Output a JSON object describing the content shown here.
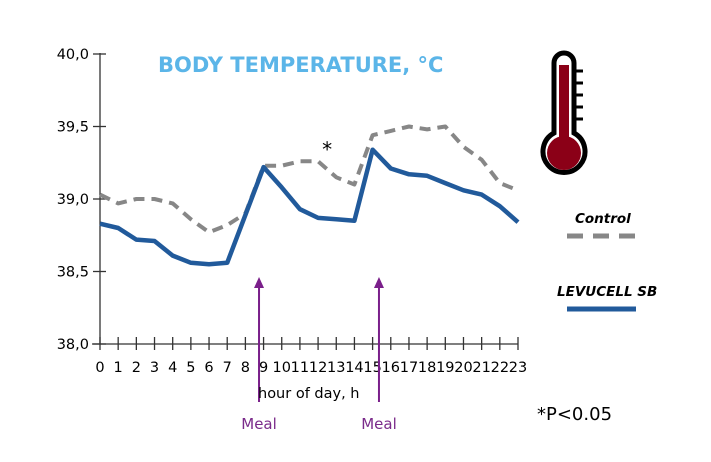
{
  "chart_data": {
    "type": "line",
    "title": "BODY TEMPERATURE, °C",
    "xlabel": "hour of day, h",
    "ylabel": "",
    "ylim": [
      38.0,
      40.0
    ],
    "yticks": [
      38.0,
      38.5,
      39.0,
      39.5,
      40.0
    ],
    "ytick_labels": [
      "38,0",
      "38,5",
      "39,0",
      "39,5",
      "40,0"
    ],
    "x": [
      0,
      1,
      2,
      3,
      4,
      5,
      6,
      7,
      8,
      9,
      10,
      11,
      12,
      13,
      14,
      15,
      16,
      17,
      18,
      19,
      20,
      21,
      22,
      23
    ],
    "xtick_labels": [
      "0",
      "1",
      "2",
      "3",
      "4",
      "5",
      "6",
      "7",
      "8",
      "9",
      "10",
      "11",
      "12",
      "13",
      "14",
      "15",
      "16",
      "17",
      "18",
      "19",
      "20",
      "21",
      "22",
      "23"
    ],
    "xlim": [
      0,
      23
    ],
    "grid": false,
    "legend_position": "right",
    "series": [
      {
        "name": "Control",
        "style": "dashed",
        "color": "#878787",
        "values": [
          39.03,
          38.97,
          39.0,
          39.0,
          38.97,
          38.86,
          38.77,
          38.82,
          38.9,
          39.23,
          39.23,
          39.26,
          39.26,
          39.15,
          39.1,
          39.44,
          39.47,
          39.5,
          39.48,
          39.5,
          39.36,
          39.27,
          39.11,
          39.06
        ]
      },
      {
        "name": "LEVUCELL SB",
        "style": "solid",
        "color": "#215a9b",
        "values": [
          38.83,
          38.8,
          38.72,
          38.71,
          38.61,
          38.56,
          38.55,
          38.56,
          38.89,
          39.22,
          39.08,
          38.93,
          38.87,
          38.86,
          38.85,
          39.34,
          39.21,
          39.17,
          39.16,
          39.11,
          39.06,
          39.03,
          38.95,
          38.84
        ]
      }
    ],
    "annotations": [
      {
        "type": "marker",
        "text": "*",
        "x": 12.5,
        "y": 39.35
      },
      {
        "type": "arrow",
        "text": "Meal",
        "x": 8.75,
        "color": "#7a1f8a"
      },
      {
        "type": "arrow",
        "text": "Meal",
        "x": 15.35,
        "color": "#7a1f8a"
      }
    ],
    "footnote": "*P<0.05",
    "icon": "thermometer-icon"
  }
}
